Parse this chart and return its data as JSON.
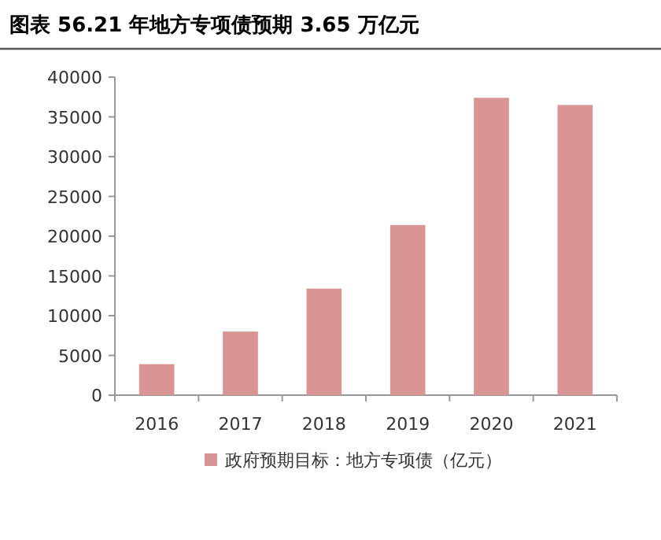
{
  "chart_data": {
    "type": "bar",
    "title": "图表 56.21 年地方专项债预期 3.65 万亿元",
    "categories": [
      "2016",
      "2017",
      "2018",
      "2019",
      "2020",
      "2021"
    ],
    "series": [
      {
        "name": "政府预期目标：地方专项债（亿元）",
        "color": "#d89594",
        "values": [
          3900,
          8000,
          13400,
          21400,
          37400,
          36500
        ]
      }
    ],
    "ylim": [
      0,
      40000
    ],
    "yticks": [
      0,
      5000,
      10000,
      15000,
      20000,
      25000,
      30000,
      35000,
      40000
    ],
    "grid": false,
    "legend": "bottom"
  }
}
